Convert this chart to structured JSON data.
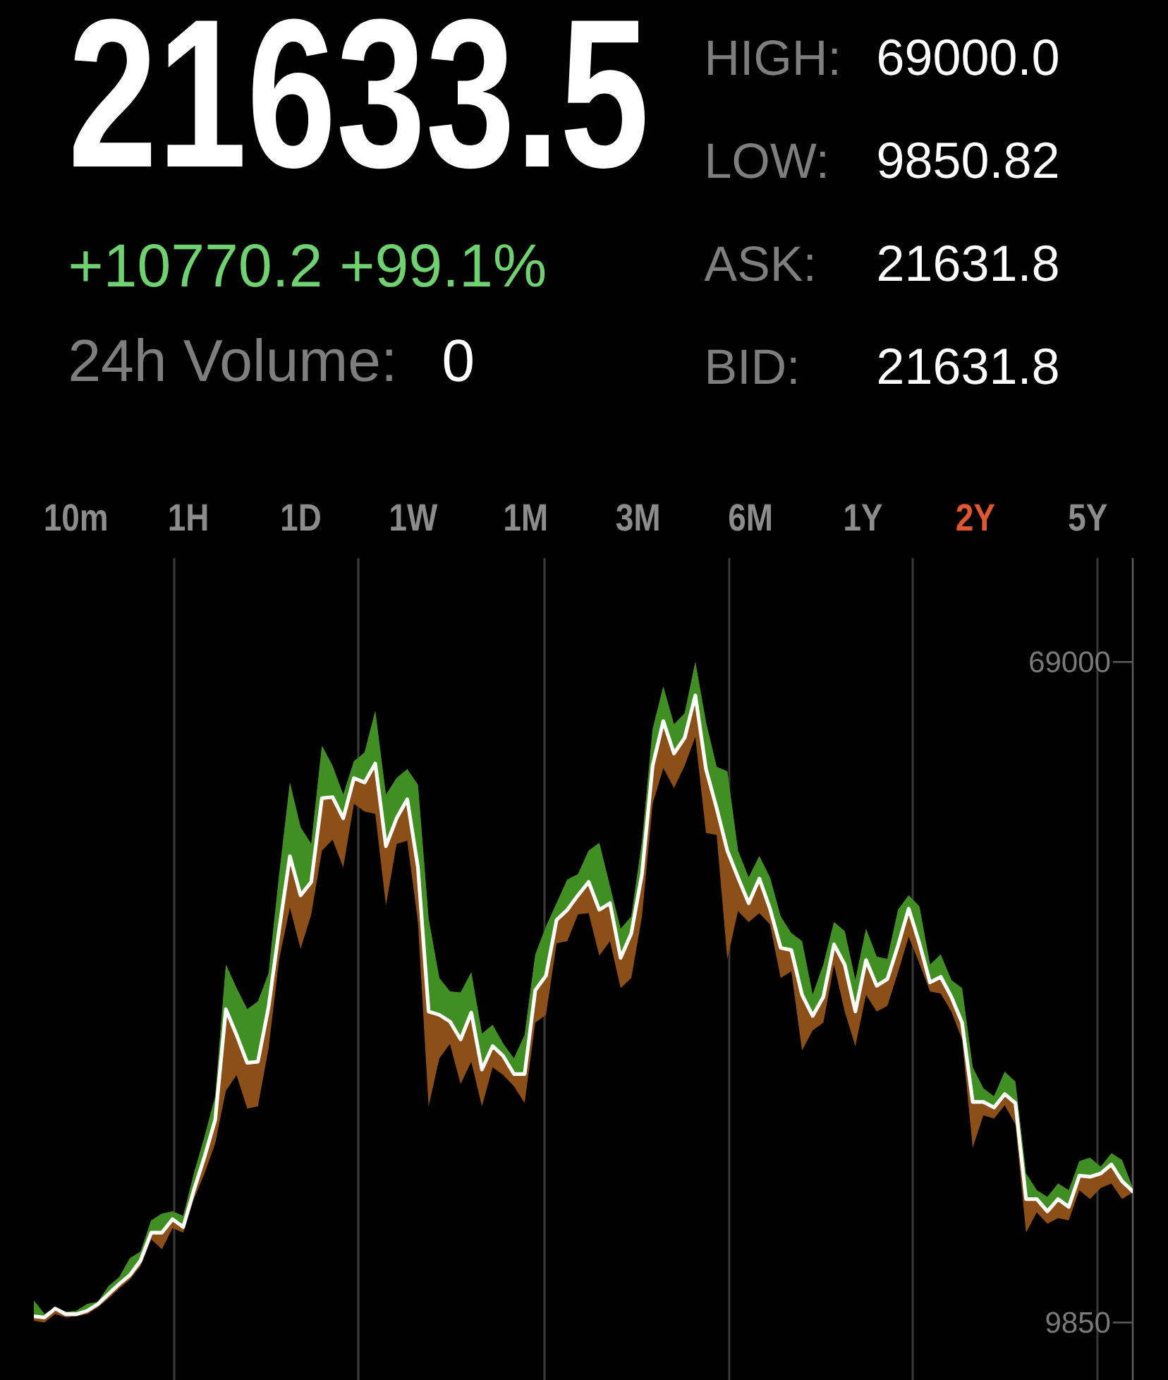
{
  "chart_data": [
    {
      "type": "other",
      "title": "21633.5",
      "subtitle": "+10770.2 +99.1%",
      "annotations": [
        "24h Volume:",
        "0",
        "HIGH:",
        "69000.0",
        "LOW:",
        "9850.82",
        "ASK:",
        "21631.8",
        "BID:",
        "21631.8"
      ],
      "categories": [
        "10m",
        "1H",
        "1D",
        "1W",
        "1M",
        "3M",
        "6M",
        "1Y",
        "2Y",
        "5Y"
      ],
      "colors": [
        "#8C8C8C",
        "#8C8C8C",
        "#8C8C8C",
        "#8C8C8C",
        "#8C8C8C",
        "#8C8C8C",
        "#8C8C8C",
        "#8C8C8C",
        "#E4572E",
        "#8C8C8C"
      ]
    },
    {
      "type": "line",
      "categories": [
        null,
        null,
        null,
        null,
        null,
        null,
        null,
        null,
        null,
        null,
        null,
        null,
        null,
        null,
        null,
        null,
        null,
        null,
        null,
        null,
        null,
        null,
        null,
        null,
        null,
        null,
        null,
        null,
        null,
        null,
        null,
        null,
        null,
        null,
        null,
        null,
        null,
        null,
        null,
        null,
        null,
        null,
        null,
        null,
        null,
        null,
        null,
        null,
        null,
        null,
        null,
        null,
        null,
        null,
        null,
        null,
        null,
        null,
        null,
        null,
        null,
        null,
        null,
        null,
        null,
        null,
        null,
        null,
        null,
        null,
        null,
        null,
        null,
        null,
        null,
        null,
        null,
        null,
        null,
        null,
        null,
        null,
        null,
        null,
        null,
        null,
        null,
        null,
        null,
        null,
        null,
        null,
        null,
        null,
        null,
        null,
        null,
        null,
        null,
        null,
        null,
        null,
        null,
        null
      ],
      "series": [
        {
          "color": "#FFFFFF",
          "values": [
            10400,
            10300,
            11100,
            10600,
            10600,
            10900,
            11500,
            12400,
            13300,
            14100,
            15400,
            17900,
            17900,
            19100,
            18400,
            21700,
            24700,
            28000,
            37900,
            35600,
            33100,
            33200,
            38100,
            45100,
            51600,
            48100,
            49300,
            56800,
            56900,
            55000,
            58600,
            58200,
            59900,
            52500,
            55000,
            56700,
            50600,
            37700,
            37400,
            36800,
            35200,
            37600,
            32500,
            34600,
            33700,
            32100,
            32100,
            39600,
            40900,
            45900,
            46800,
            48100,
            49300,
            46800,
            47400,
            42500,
            44700,
            50000,
            59700,
            63700,
            60800,
            62200,
            66000,
            59400,
            55900,
            52100,
            49700,
            47400,
            49600,
            46900,
            43400,
            43200,
            39200,
            37300,
            39000,
            43700,
            41900,
            37700,
            42300,
            40000,
            40600,
            43600,
            46900,
            43800,
            40300,
            40800,
            39000,
            36700,
            29600,
            29600,
            29100,
            30300,
            29500,
            20900,
            20900,
            19800,
            20900,
            20200,
            23000,
            22900,
            23200,
            24000,
            22500,
            21600
          ],
          "upper": [
            11800,
            10600,
            11200,
            10800,
            10900,
            11500,
            11700,
            13100,
            13900,
            15600,
            16200,
            19000,
            19600,
            19800,
            19400,
            23200,
            26500,
            30100,
            41900,
            39800,
            37900,
            38600,
            41100,
            50000,
            58200,
            54200,
            52700,
            61500,
            59700,
            57100,
            60100,
            60900,
            64600,
            57100,
            58600,
            59400,
            58000,
            46000,
            40700,
            39500,
            39400,
            41200,
            35700,
            36500,
            34800,
            33500,
            35600,
            42800,
            45300,
            47400,
            49500,
            50000,
            52100,
            52800,
            48900,
            45100,
            46200,
            52900,
            63000,
            66800,
            63400,
            64400,
            69000,
            63600,
            59600,
            59200,
            52100,
            49700,
            51600,
            49700,
            46200,
            44700,
            44000,
            39200,
            41900,
            45700,
            44900,
            40500,
            45100,
            42600,
            42400,
            46800,
            48100,
            47100,
            41900,
            42800,
            40500,
            39800,
            32700,
            30800,
            30100,
            32300,
            31400,
            23200,
            21700,
            21100,
            22300,
            21700,
            24300,
            24600,
            23800,
            25000,
            24400,
            21900
          ],
          "lower": [
            10000,
            9850,
            10600,
            10300,
            10400,
            10600,
            11200,
            12000,
            12900,
            13700,
            14900,
            17300,
            16400,
            18300,
            17900,
            20900,
            23200,
            25900,
            30600,
            32000,
            29000,
            29200,
            34400,
            42400,
            47000,
            43300,
            46400,
            52100,
            53100,
            50600,
            56300,
            55600,
            55400,
            47200,
            52700,
            53000,
            45700,
            29200,
            33500,
            34800,
            31200,
            33200,
            29200,
            32700,
            32000,
            31000,
            29500,
            36700,
            37400,
            43800,
            44000,
            46400,
            46500,
            42700,
            44000,
            39800,
            40700,
            46200,
            56300,
            59500,
            57700,
            59700,
            62300,
            53700,
            53500,
            42400,
            46700,
            45700,
            46500,
            45500,
            40700,
            41300,
            34200,
            36000,
            36700,
            41900,
            37700,
            34600,
            39200,
            37700,
            38200,
            41200,
            44400,
            42000,
            39500,
            39300,
            37700,
            35200,
            25500,
            28400,
            28100,
            29300,
            27600,
            17900,
            19700,
            18700,
            19200,
            19000,
            21700,
            20900,
            21900,
            22300,
            20900,
            21500
          ]
        }
      ],
      "ylim": [
        4700,
        78300
      ],
      "yticks": [
        9850,
        69000
      ],
      "tick_labels": "y"
    }
  ]
}
